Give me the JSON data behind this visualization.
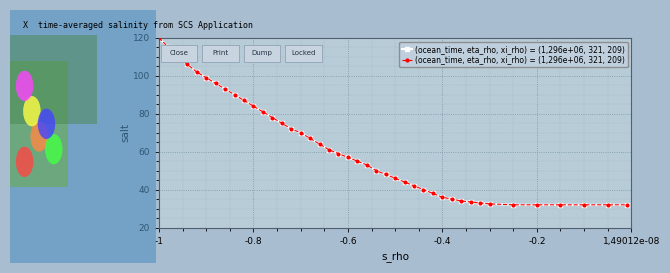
{
  "title": "time-averaged salinity from SCS Application",
  "xlabel": "s_rho",
  "ylabel": "salt",
  "xlim": [
    -1.0,
    1.49012e-08
  ],
  "ylim": [
    20,
    120
  ],
  "xticks": [
    -1.0,
    -0.8,
    -0.6,
    -0.4,
    -0.2,
    1.49012e-08
  ],
  "xticklabels": [
    "-1",
    "-0.8",
    "-0.6",
    "-0.4",
    "-0.2",
    "1,49012e-08"
  ],
  "yticks": [
    20,
    40,
    60,
    80,
    100,
    120
  ],
  "bg_color": "#a8bdd0",
  "plot_bg_color": "#b8ccd8",
  "grid_color": "#7090a0",
  "legend1": "(ocean_time, eta_rho, xi_rho) = (1,296e+06, 321, 209)",
  "legend2": "(ocean_time, eta_rho, xi_rho) = (1,296e+06, 321, 209)",
  "line1_color": "#ff0000",
  "line2_color": "white",
  "curve_s_rho": [
    -1.0,
    -0.98,
    -0.96,
    -0.94,
    -0.92,
    -0.9,
    -0.88,
    -0.86,
    -0.84,
    -0.82,
    -0.8,
    -0.78,
    -0.76,
    -0.74,
    -0.72,
    -0.7,
    -0.68,
    -0.66,
    -0.64,
    -0.62,
    -0.6,
    -0.58,
    -0.56,
    -0.54,
    -0.52,
    -0.5,
    -0.48,
    -0.46,
    -0.44,
    -0.42,
    -0.4,
    -0.38,
    -0.36,
    -0.34,
    -0.32,
    -0.3,
    -0.25,
    -0.2,
    -0.15,
    -0.1,
    -0.05,
    -0.01
  ],
  "curve_salt": [
    120,
    115,
    110,
    106,
    102,
    99,
    96,
    93,
    90,
    87,
    84,
    81,
    78,
    75,
    72,
    70,
    67,
    64,
    61,
    59,
    57,
    55,
    53,
    50,
    48,
    46,
    44,
    42,
    40,
    38,
    36,
    35,
    34,
    33.5,
    33,
    32.5,
    32,
    32,
    32,
    32,
    32,
    32
  ]
}
